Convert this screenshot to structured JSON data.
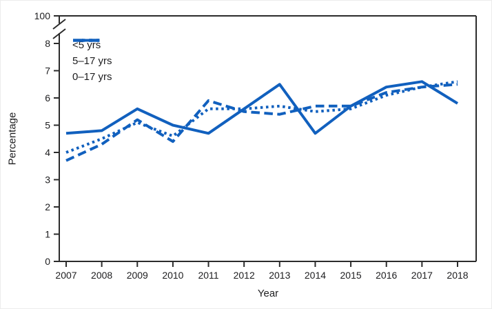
{
  "chart_data": {
    "type": "line",
    "title": "",
    "xlabel": "Year",
    "ylabel": "Percentage",
    "x": [
      2007,
      2008,
      2009,
      2010,
      2011,
      2012,
      2013,
      2014,
      2015,
      2016,
      2017,
      2018
    ],
    "series": [
      {
        "name": "<5 yrs",
        "style": "solid",
        "values": [
          4.7,
          4.8,
          5.6,
          5.0,
          4.7,
          5.6,
          6.5,
          4.7,
          5.7,
          6.4,
          6.6,
          5.8
        ]
      },
      {
        "name": "5–17 yrs",
        "style": "dashed",
        "values": [
          3.7,
          4.3,
          5.2,
          4.4,
          5.9,
          5.5,
          5.4,
          5.7,
          5.7,
          6.2,
          6.4,
          6.5
        ]
      },
      {
        "name": "0–17 yrs",
        "style": "dotted",
        "values": [
          4.0,
          4.5,
          5.1,
          4.6,
          5.6,
          5.6,
          5.7,
          5.5,
          5.6,
          6.1,
          6.4,
          6.6
        ]
      }
    ],
    "y_ticks": [
      0,
      1,
      2,
      3,
      4,
      5,
      6,
      7,
      8
    ],
    "y_break_top_label": "100",
    "axis_break": true,
    "ylim_displayed": [
      0,
      8
    ],
    "grid": false,
    "legend_position": "upper-left",
    "line_color": "#1160BE",
    "axis_color": "#2b2b2b"
  }
}
